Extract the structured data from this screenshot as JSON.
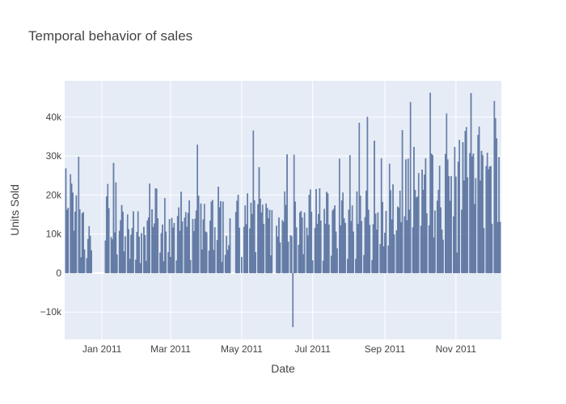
{
  "chart_data": {
    "type": "bar",
    "title": "Temporal behavior of sales",
    "xlabel": "Date",
    "ylabel": "Units Sold",
    "color": "#5b74a0",
    "grid": true,
    "xlim": [
      "2010-11-30",
      "2011-12-10"
    ],
    "xticks": [
      {
        "value": "2011-01-01",
        "label": "Jan 2011"
      },
      {
        "value": "2011-03-01",
        "label": "Mar 2011"
      },
      {
        "value": "2011-05-01",
        "label": "May 2011"
      },
      {
        "value": "2011-07-01",
        "label": "Jul 2011"
      },
      {
        "value": "2011-09-01",
        "label": "Sep 2011"
      },
      {
        "value": "2011-11-01",
        "label": "Nov 2011"
      }
    ],
    "ylim": [
      -17000,
      49300
    ],
    "yticks": [
      {
        "value": -10000,
        "label": "−10k"
      },
      0,
      {
        "value": 10000,
        "label": "10k"
      },
      {
        "value": 20000,
        "label": "20k"
      },
      {
        "value": 30000,
        "label": "30k"
      },
      {
        "value": 40000,
        "label": "40k"
      }
    ],
    "x": [
      "2010-12-01",
      "2010-12-02",
      "2010-12-03",
      "2010-12-05",
      "2010-12-06",
      "2010-12-07",
      "2010-12-08",
      "2010-12-09",
      "2010-12-10",
      "2010-12-12",
      "2010-12-13",
      "2010-12-14",
      "2010-12-15",
      "2010-12-16",
      "2010-12-17",
      "2010-12-19",
      "2010-12-20",
      "2010-12-21",
      "2010-12-22",
      "2010-12-23",
      "2011-01-04",
      "2011-01-05",
      "2011-01-06",
      "2011-01-07",
      "2011-01-09",
      "2011-01-10",
      "2011-01-11",
      "2011-01-12",
      "2011-01-13",
      "2011-01-14",
      "2011-01-16",
      "2011-01-17",
      "2011-01-18",
      "2011-01-19",
      "2011-01-20",
      "2011-01-21",
      "2011-01-23",
      "2011-01-24",
      "2011-01-25",
      "2011-01-26",
      "2011-01-27",
      "2011-01-28",
      "2011-01-30",
      "2011-01-31",
      "2011-02-01",
      "2011-02-02",
      "2011-02-03",
      "2011-02-04",
      "2011-02-06",
      "2011-02-07",
      "2011-02-08",
      "2011-02-09",
      "2011-02-10",
      "2011-02-11",
      "2011-02-13",
      "2011-02-14",
      "2011-02-15",
      "2011-02-16",
      "2011-02-17",
      "2011-02-18",
      "2011-02-20",
      "2011-02-21",
      "2011-02-22",
      "2011-02-23",
      "2011-02-24",
      "2011-02-25",
      "2011-02-27",
      "2011-02-28",
      "2011-03-01",
      "2011-03-02",
      "2011-03-03",
      "2011-03-04",
      "2011-03-06",
      "2011-03-07",
      "2011-03-08",
      "2011-03-09",
      "2011-03-10",
      "2011-03-11",
      "2011-03-13",
      "2011-03-14",
      "2011-03-15",
      "2011-03-16",
      "2011-03-17",
      "2011-03-18",
      "2011-03-20",
      "2011-03-21",
      "2011-03-22",
      "2011-03-23",
      "2011-03-24",
      "2011-03-25",
      "2011-03-27",
      "2011-03-28",
      "2011-03-29",
      "2011-03-30",
      "2011-03-31",
      "2011-04-01",
      "2011-04-03",
      "2011-04-04",
      "2011-04-05",
      "2011-04-06",
      "2011-04-07",
      "2011-04-08",
      "2011-04-10",
      "2011-04-11",
      "2011-04-12",
      "2011-04-13",
      "2011-04-14",
      "2011-04-15",
      "2011-04-17",
      "2011-04-18",
      "2011-04-19",
      "2011-04-20",
      "2011-04-21",
      "2011-04-26",
      "2011-04-27",
      "2011-04-28",
      "2011-04-29",
      "2011-05-01",
      "2011-05-03",
      "2011-05-04",
      "2011-05-05",
      "2011-05-06",
      "2011-05-08",
      "2011-05-09",
      "2011-05-10",
      "2011-05-11",
      "2011-05-12",
      "2011-05-13",
      "2011-05-15",
      "2011-05-16",
      "2011-05-17",
      "2011-05-18",
      "2011-05-19",
      "2011-05-20",
      "2011-05-22",
      "2011-05-23",
      "2011-05-24",
      "2011-05-25",
      "2011-05-26",
      "2011-05-27",
      "2011-05-31",
      "2011-06-01",
      "2011-06-02",
      "2011-06-03",
      "2011-06-05",
      "2011-06-06",
      "2011-06-07",
      "2011-06-08",
      "2011-06-09",
      "2011-06-10",
      "2011-06-12",
      "2011-06-13",
      "2011-06-14",
      "2011-06-15",
      "2011-06-16",
      "2011-06-17",
      "2011-06-19",
      "2011-06-20",
      "2011-06-21",
      "2011-06-22",
      "2011-06-23",
      "2011-06-24",
      "2011-06-26",
      "2011-06-27",
      "2011-06-28",
      "2011-06-29",
      "2011-06-30",
      "2011-07-01",
      "2011-07-03",
      "2011-07-04",
      "2011-07-05",
      "2011-07-06",
      "2011-07-07",
      "2011-07-08",
      "2011-07-10",
      "2011-07-11",
      "2011-07-12",
      "2011-07-13",
      "2011-07-14",
      "2011-07-15",
      "2011-07-17",
      "2011-07-18",
      "2011-07-19",
      "2011-07-20",
      "2011-07-21",
      "2011-07-22",
      "2011-07-24",
      "2011-07-25",
      "2011-07-26",
      "2011-07-27",
      "2011-07-28",
      "2011-07-29",
      "2011-07-31",
      "2011-08-01",
      "2011-08-02",
      "2011-08-03",
      "2011-08-04",
      "2011-08-05",
      "2011-08-07",
      "2011-08-08",
      "2011-08-09",
      "2011-08-10",
      "2011-08-11",
      "2011-08-12",
      "2011-08-14",
      "2011-08-15",
      "2011-08-16",
      "2011-08-17",
      "2011-08-18",
      "2011-08-19",
      "2011-08-21",
      "2011-08-22",
      "2011-08-23",
      "2011-08-24",
      "2011-08-25",
      "2011-08-26",
      "2011-08-28",
      "2011-08-29",
      "2011-08-30",
      "2011-08-31",
      "2011-09-01",
      "2011-09-02",
      "2011-09-04",
      "2011-09-05",
      "2011-09-06",
      "2011-09-07",
      "2011-09-08",
      "2011-09-09",
      "2011-09-11",
      "2011-09-12",
      "2011-09-13",
      "2011-09-14",
      "2011-09-15",
      "2011-09-16",
      "2011-09-18",
      "2011-09-19",
      "2011-09-20",
      "2011-09-21",
      "2011-09-22",
      "2011-09-23",
      "2011-09-25",
      "2011-09-26",
      "2011-09-27",
      "2011-09-28",
      "2011-09-29",
      "2011-09-30",
      "2011-10-02",
      "2011-10-03",
      "2011-10-04",
      "2011-10-05",
      "2011-10-06",
      "2011-10-07",
      "2011-10-09",
      "2011-10-10",
      "2011-10-11",
      "2011-10-12",
      "2011-10-13",
      "2011-10-14",
      "2011-10-16",
      "2011-10-17",
      "2011-10-18",
      "2011-10-19",
      "2011-10-20",
      "2011-10-21",
      "2011-10-23",
      "2011-10-24",
      "2011-10-25",
      "2011-10-26",
      "2011-10-27",
      "2011-10-28",
      "2011-10-30",
      "2011-10-31",
      "2011-11-01",
      "2011-11-02",
      "2011-11-03",
      "2011-11-04",
      "2011-11-06",
      "2011-11-07",
      "2011-11-08",
      "2011-11-09",
      "2011-11-10",
      "2011-11-11",
      "2011-11-13",
      "2011-11-14",
      "2011-11-15",
      "2011-11-16",
      "2011-11-17",
      "2011-11-18",
      "2011-11-20",
      "2011-11-21",
      "2011-11-22",
      "2011-11-23",
      "2011-11-24",
      "2011-11-25",
      "2011-11-27",
      "2011-11-28",
      "2011-11-29",
      "2011-11-30",
      "2011-12-01",
      "2011-12-02",
      "2011-12-04",
      "2011-12-05",
      "2011-12-06",
      "2011-12-07",
      "2011-12-08",
      "2011-12-09"
    ],
    "values": [
      26800,
      16200,
      16700,
      25300,
      22900,
      20600,
      10800,
      15700,
      19900,
      29800,
      16300,
      4000,
      15300,
      15600,
      6000,
      3800,
      8700,
      12000,
      9500,
      5800,
      8300,
      19600,
      22800,
      16600,
      9200,
      8600,
      28200,
      10400,
      23200,
      4700,
      10800,
      13500,
      17400,
      15700,
      5500,
      9400,
      15000,
      11200,
      3600,
      9800,
      11500,
      15800,
      3400,
      10500,
      15800,
      9300,
      2500,
      10200,
      11800,
      9700,
      3100,
      13400,
      14200,
      22900,
      16300,
      11800,
      12700,
      21700,
      21600,
      14000,
      5200,
      10200,
      12400,
      3000,
      19200,
      10600,
      5300,
      13800,
      4100,
      14100,
      11600,
      12800,
      3200,
      14600,
      16800,
      10800,
      20800,
      13200,
      14200,
      15600,
      11800,
      15400,
      18600,
      3300,
      13800,
      10700,
      13900,
      16000,
      32900,
      19800,
      17800,
      6000,
      13700,
      17700,
      10600,
      10400,
      5700,
      13400,
      18300,
      18700,
      5900,
      11700,
      8400,
      22100,
      16800,
      18400,
      2800,
      18300,
      4600,
      9500,
      5900,
      7100,
      14000,
      15600,
      18500,
      20000,
      11600,
      4100,
      11800,
      17300,
      12500,
      20400,
      11400,
      18000,
      15100,
      36500,
      18600,
      5300,
      17600,
      27100,
      19000,
      15500,
      17500,
      12600,
      17800,
      16700,
      14000,
      16200,
      4500,
      16100,
      12100,
      9300,
      14200,
      7800,
      13500,
      13100,
      20900,
      17400,
      30400,
      8000,
      9700,
      9400,
      -13800,
      30300,
      18300,
      11700,
      7200,
      15500,
      15900,
      14200,
      4800,
      15500,
      11600,
      9600,
      20000,
      21400,
      15700,
      3200,
      11500,
      21500,
      12600,
      15100,
      21700,
      13400,
      3100,
      16400,
      12600,
      20800,
      20400,
      12400,
      4400,
      16000,
      16400,
      17300,
      10600,
      6300,
      29300,
      12200,
      18600,
      20600,
      14000,
      12800,
      3600,
      16200,
      30200,
      13300,
      17300,
      10600,
      3600,
      20900,
      12600,
      38500,
      19800,
      13300,
      4600,
      14300,
      21100,
      40000,
      16200,
      12300,
      3300,
      12500,
      33900,
      15200,
      11100,
      15500,
      7400,
      29400,
      18200,
      6800,
      10300,
      15900,
      7000,
      28000,
      21200,
      13700,
      22700,
      9900,
      10900,
      17000,
      16700,
      21100,
      13000,
      36600,
      14500,
      29100,
      13500,
      29300,
      16200,
      43800,
      11700,
      32300,
      21300,
      19300,
      19600,
      25600,
      12100,
      26500,
      21300,
      25200,
      29400,
      15300,
      12200,
      46200,
      30600,
      30200,
      9100,
      16000,
      18500,
      21300,
      27500,
      16800,
      11100,
      8500,
      30500,
      40900,
      29100,
      24800,
      18500,
      24800,
      14500,
      32300,
      24700,
      5200,
      28500,
      34100,
      16200,
      33500,
      23700,
      36400,
      37400,
      24500,
      30700,
      46100,
      29900,
      30600,
      17700,
      24300,
      35400,
      37500,
      23700,
      31300,
      30200,
      11500,
      27400,
      30800,
      26600,
      27300,
      27400,
      12600,
      44100,
      39700,
      34500,
      13000,
      29700,
      13100
    ]
  }
}
